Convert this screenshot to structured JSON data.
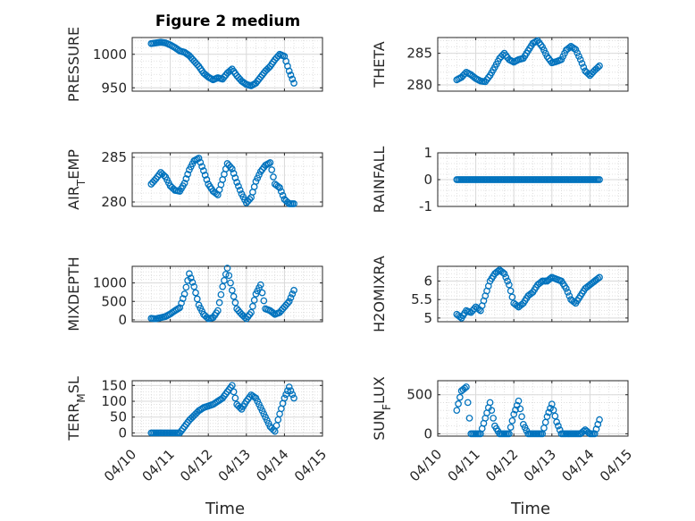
{
  "figure": {
    "title": "Figure 2 medium",
    "xlabel": "Time"
  },
  "colors": {
    "marker": "#0072BD",
    "axis": "#262626",
    "grid": "#d9d9d9"
  },
  "chart_data": [
    {
      "type": "scatter",
      "ylabel": "PRESSURE",
      "ylabel_sub": "",
      "xlim": [
        "04/10",
        "04/15"
      ],
      "ylim": [
        945,
        1025
      ],
      "yticks": [
        950,
        1000
      ],
      "x": [
        "04/10 12:00",
        "04/10 15:00",
        "04/10 18:00",
        "04/10 21:00",
        "04/11 00:00",
        "04/11 03:00",
        "04/11 06:00",
        "04/11 09:00",
        "04/11 12:00",
        "04/11 15:00",
        "04/11 18:00",
        "04/11 21:00",
        "04/12 00:00",
        "04/12 03:00",
        "04/12 06:00",
        "04/12 09:00",
        "04/12 12:00",
        "04/12 15:00",
        "04/12 18:00",
        "04/12 21:00",
        "04/13 00:00",
        "04/13 03:00",
        "04/13 06:00",
        "04/13 09:00",
        "04/13 12:00",
        "04/13 15:00",
        "04/13 18:00",
        "04/13 21:00",
        "04/14 00:00",
        "04/14 03:00",
        "04/14 06:00"
      ],
      "y": [
        1016,
        1017,
        1018,
        1017,
        1014,
        1010,
        1005,
        1003,
        998,
        990,
        982,
        972,
        966,
        962,
        965,
        963,
        972,
        978,
        968,
        960,
        955,
        953,
        957,
        966,
        975,
        982,
        992,
        1000,
        997,
        975,
        957
      ]
    },
    {
      "type": "scatter",
      "ylabel": "THETA",
      "ylabel_sub": "",
      "xlim": [
        "04/10",
        "04/15"
      ],
      "ylim": [
        279,
        287.5
      ],
      "yticks": [
        280,
        285
      ],
      "x": [
        "04/10 12:00",
        "04/10 15:00",
        "04/10 18:00",
        "04/10 21:00",
        "04/11 00:00",
        "04/11 03:00",
        "04/11 06:00",
        "04/11 09:00",
        "04/11 12:00",
        "04/11 15:00",
        "04/11 18:00",
        "04/11 21:00",
        "04/12 00:00",
        "04/12 03:00",
        "04/12 06:00",
        "04/12 09:00",
        "04/12 12:00",
        "04/12 15:00",
        "04/12 18:00",
        "04/12 21:00",
        "04/13 00:00",
        "04/13 03:00",
        "04/13 06:00",
        "04/13 09:00",
        "04/13 12:00",
        "04/13 15:00",
        "04/13 18:00",
        "04/13 21:00",
        "04/14 00:00",
        "04/14 03:00",
        "04/14 06:00"
      ],
      "y": [
        280.8,
        281.2,
        282.0,
        281.6,
        281.0,
        280.6,
        280.5,
        281.5,
        282.8,
        284.2,
        285.0,
        284.0,
        283.6,
        284.0,
        284.2,
        285.4,
        286.6,
        287.0,
        286.0,
        284.5,
        283.5,
        283.7,
        284.0,
        285.5,
        286.1,
        285.6,
        284.0,
        282.2,
        281.5,
        282.3,
        283.0
      ]
    },
    {
      "type": "scatter",
      "ylabel": "AIR",
      "ylabel_sub": "T",
      "ylabel_after": "EMP",
      "xlim": [
        "04/10",
        "04/15"
      ],
      "ylim": [
        279.5,
        285.5
      ],
      "yticks": [
        280,
        285
      ],
      "x": [
        "04/10 12:00",
        "04/10 15:00",
        "04/10 18:00",
        "04/10 21:00",
        "04/11 00:00",
        "04/11 03:00",
        "04/11 06:00",
        "04/11 09:00",
        "04/11 12:00",
        "04/11 15:00",
        "04/11 18:00",
        "04/11 21:00",
        "04/12 00:00",
        "04/12 03:00",
        "04/12 06:00",
        "04/12 09:00",
        "04/12 12:00",
        "04/12 15:00",
        "04/12 18:00",
        "04/12 21:00",
        "04/13 00:00",
        "04/13 03:00",
        "04/13 06:00",
        "04/13 09:00",
        "04/13 12:00",
        "04/13 15:00",
        "04/13 18:00",
        "04/13 21:00",
        "04/14 00:00",
        "04/14 03:00",
        "04/14 06:00"
      ],
      "y": [
        282.0,
        282.6,
        283.3,
        282.8,
        281.8,
        281.3,
        281.2,
        282.1,
        283.6,
        284.6,
        284.9,
        283.5,
        282.0,
        281.2,
        280.8,
        282.5,
        284.3,
        283.7,
        282.2,
        280.9,
        279.9,
        280.5,
        282.3,
        283.4,
        284.1,
        284.4,
        282.0,
        281.6,
        280.3,
        279.8,
        279.8
      ]
    },
    {
      "type": "scatter",
      "ylabel": "RAINFALL",
      "ylabel_sub": "",
      "xlim": [
        "04/10",
        "04/15"
      ],
      "ylim": [
        -1,
        1
      ],
      "yticks": [
        -1,
        0,
        1
      ],
      "x": [
        "04/10 12:00",
        "04/10 15:00",
        "04/10 18:00",
        "04/10 21:00",
        "04/11 00:00",
        "04/11 03:00",
        "04/11 06:00",
        "04/11 09:00",
        "04/11 12:00",
        "04/11 15:00",
        "04/11 18:00",
        "04/11 21:00",
        "04/12 00:00",
        "04/12 03:00",
        "04/12 06:00",
        "04/12 09:00",
        "04/12 12:00",
        "04/12 15:00",
        "04/12 18:00",
        "04/12 21:00",
        "04/13 00:00",
        "04/13 03:00",
        "04/13 06:00",
        "04/13 09:00",
        "04/13 12:00",
        "04/13 15:00",
        "04/13 18:00",
        "04/13 21:00",
        "04/14 00:00",
        "04/14 03:00",
        "04/14 06:00"
      ],
      "y": [
        0,
        0,
        0,
        0,
        0,
        0,
        0,
        0,
        0,
        0,
        0,
        0,
        0,
        0,
        0,
        0,
        0,
        0,
        0,
        0,
        0,
        0,
        0,
        0,
        0,
        0,
        0,
        0,
        0,
        0,
        0
      ]
    },
    {
      "type": "scatter",
      "ylabel": "MIXDEPTH",
      "ylabel_sub": "",
      "xlim": [
        "04/10",
        "04/15"
      ],
      "ylim": [
        -50,
        1450
      ],
      "yticks": [
        0,
        500,
        1000
      ],
      "x": [
        "04/10 12:00",
        "04/10 15:00",
        "04/10 18:00",
        "04/10 21:00",
        "04/11 00:00",
        "04/11 03:00",
        "04/11 06:00",
        "04/11 09:00",
        "04/11 12:00",
        "04/11 15:00",
        "04/11 18:00",
        "04/11 21:00",
        "04/12 00:00",
        "04/12 03:00",
        "04/12 06:00",
        "04/12 09:00",
        "04/12 12:00",
        "04/12 15:00",
        "04/12 18:00",
        "04/12 21:00",
        "04/13 00:00",
        "04/13 03:00",
        "04/13 06:00",
        "04/13 09:00",
        "04/13 12:00",
        "04/13 15:00",
        "04/13 18:00",
        "04/13 21:00",
        "04/14 00:00",
        "04/14 03:00",
        "04/14 06:00"
      ],
      "y": [
        40,
        30,
        60,
        90,
        160,
        250,
        330,
        700,
        1250,
        900,
        400,
        150,
        30,
        60,
        250,
        900,
        1400,
        800,
        300,
        150,
        30,
        200,
        700,
        950,
        300,
        250,
        150,
        200,
        350,
        500,
        800
      ]
    },
    {
      "type": "scatter",
      "ylabel": "H2OMIXRA",
      "ylabel_sub": "",
      "xlim": [
        "04/10",
        "04/15"
      ],
      "ylim": [
        4.9,
        6.4
      ],
      "yticks": [
        5,
        5.5,
        6
      ],
      "x": [
        "04/10 12:00",
        "04/10 15:00",
        "04/10 18:00",
        "04/10 21:00",
        "04/11 00:00",
        "04/11 03:00",
        "04/11 06:00",
        "04/11 09:00",
        "04/11 12:00",
        "04/11 15:00",
        "04/11 18:00",
        "04/11 21:00",
        "04/12 00:00",
        "04/12 03:00",
        "04/12 06:00",
        "04/12 09:00",
        "04/12 12:00",
        "04/12 15:00",
        "04/12 18:00",
        "04/12 21:00",
        "04/13 00:00",
        "04/13 03:00",
        "04/13 06:00",
        "04/13 09:00",
        "04/13 12:00",
        "04/13 15:00",
        "04/13 18:00",
        "04/13 21:00",
        "04/14 00:00",
        "04/14 03:00",
        "04/14 06:00"
      ],
      "y": [
        5.1,
        5.0,
        5.2,
        5.15,
        5.3,
        5.2,
        5.6,
        6.0,
        6.2,
        6.3,
        6.2,
        5.9,
        5.4,
        5.3,
        5.4,
        5.6,
        5.7,
        5.9,
        6.0,
        6.0,
        6.1,
        6.05,
        6.0,
        5.8,
        5.5,
        5.4,
        5.6,
        5.8,
        5.9,
        6.0,
        6.1
      ]
    },
    {
      "type": "scatter",
      "ylabel": "TERR",
      "ylabel_sub": "M",
      "ylabel_after": "SL",
      "xlim": [
        "04/10",
        "04/15"
      ],
      "ylim": [
        -10,
        165
      ],
      "yticks": [
        0,
        50,
        100,
        150
      ],
      "x": [
        "04/10 12:00",
        "04/10 15:00",
        "04/10 18:00",
        "04/10 21:00",
        "04/11 00:00",
        "04/11 03:00",
        "04/11 06:00",
        "04/11 09:00",
        "04/11 12:00",
        "04/11 15:00",
        "04/11 18:00",
        "04/11 21:00",
        "04/12 00:00",
        "04/12 03:00",
        "04/12 06:00",
        "04/12 09:00",
        "04/12 12:00",
        "04/12 15:00",
        "04/12 18:00",
        "04/12 21:00",
        "04/13 00:00",
        "04/13 03:00",
        "04/13 06:00",
        "04/13 09:00",
        "04/13 12:00",
        "04/13 15:00",
        "04/13 18:00",
        "04/13 21:00",
        "04/14 00:00",
        "04/14 03:00",
        "04/14 06:00"
      ],
      "y": [
        0,
        0,
        0,
        0,
        0,
        0,
        0,
        20,
        40,
        55,
        70,
        80,
        85,
        90,
        100,
        110,
        130,
        150,
        90,
        75,
        100,
        120,
        110,
        80,
        50,
        20,
        5,
        60,
        110,
        145,
        110
      ]
    },
    {
      "type": "scatter",
      "ylabel": "SUN",
      "ylabel_sub": "F",
      "ylabel_after": "LUX",
      "xlim": [
        "04/10",
        "04/15"
      ],
      "ylim": [
        -30,
        680
      ],
      "yticks": [
        0,
        500
      ],
      "x": [
        "04/10 12:00",
        "04/10 15:00",
        "04/10 18:00",
        "04/10 21:00",
        "04/11 00:00",
        "04/11 03:00",
        "04/11 06:00",
        "04/11 09:00",
        "04/11 12:00",
        "04/11 15:00",
        "04/11 18:00",
        "04/11 21:00",
        "04/12 00:00",
        "04/12 03:00",
        "04/12 06:00",
        "04/12 09:00",
        "04/12 12:00",
        "04/12 15:00",
        "04/12 18:00",
        "04/12 21:00",
        "04/13 00:00",
        "04/13 03:00",
        "04/13 06:00",
        "04/13 09:00",
        "04/13 12:00",
        "04/13 15:00",
        "04/13 18:00",
        "04/13 21:00",
        "04/14 00:00",
        "04/14 03:00",
        "04/14 06:00"
      ],
      "y": [
        300,
        550,
        600,
        0,
        0,
        0,
        200,
        400,
        100,
        0,
        0,
        0,
        250,
        420,
        120,
        0,
        0,
        0,
        0,
        220,
        380,
        150,
        0,
        0,
        0,
        0,
        0,
        50,
        0,
        0,
        180
      ]
    }
  ],
  "xticklabels": [
    "04/10",
    "04/11",
    "04/12",
    "04/13",
    "04/14",
    "04/15"
  ]
}
